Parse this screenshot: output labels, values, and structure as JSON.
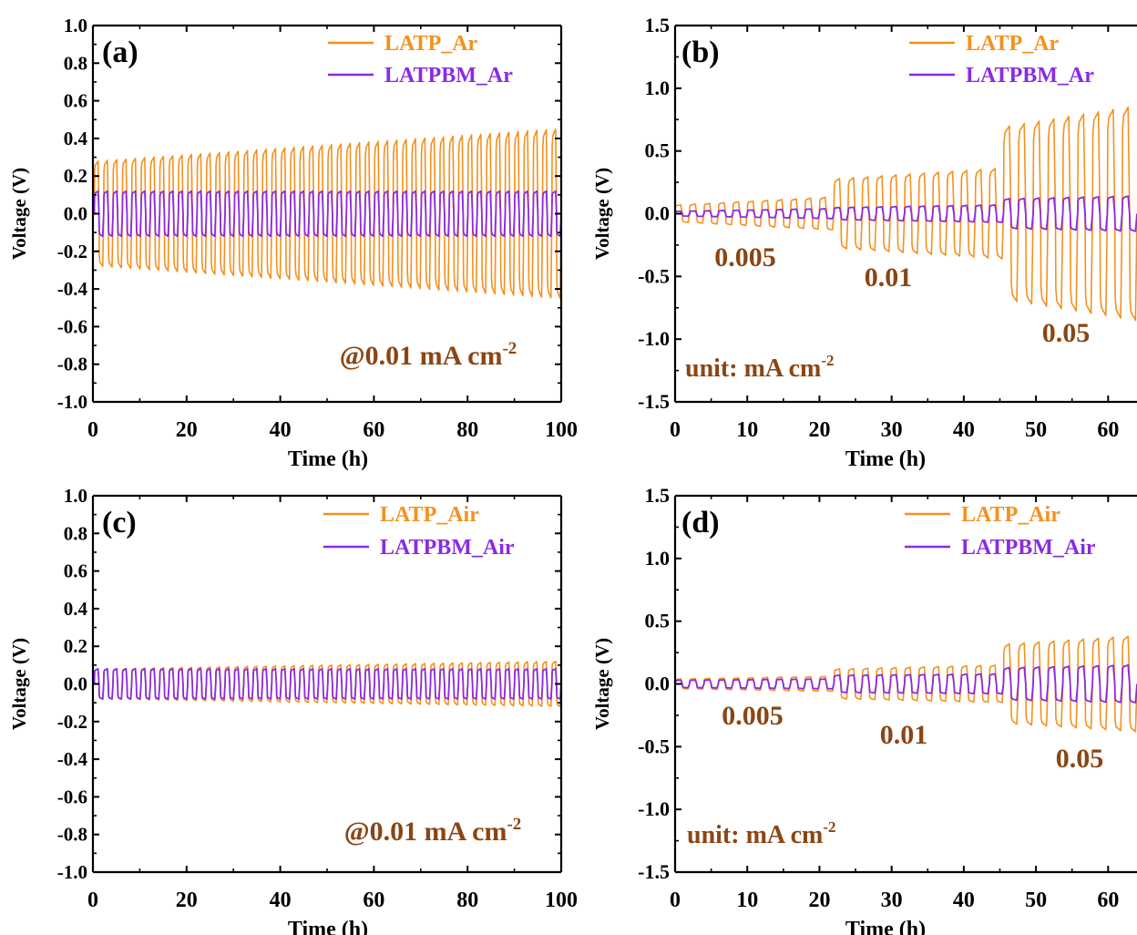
{
  "colors": {
    "orange": "#f5901e",
    "purple": "#8a2be2",
    "annotation": "#8b4513",
    "axis": "#000000"
  },
  "chart_data": [
    {
      "type": "line",
      "panel_label": "(a)",
      "xlabel": "Time (h)",
      "ylabel": "Voltage (V)",
      "xlim": [
        0,
        100
      ],
      "ylim": [
        -1.0,
        1.0
      ],
      "xticks": [
        "0",
        "20",
        "40",
        "60",
        "80",
        "100"
      ],
      "yticks": [
        "1.0",
        "0.8",
        "0.6",
        "0.4",
        "0.2",
        "0.0",
        "-0.2",
        "-0.4",
        "-0.6",
        "-0.8",
        "-1.0"
      ],
      "legend_position": "top-right",
      "series": [
        {
          "name": "LATP_Ar",
          "color": "#f5901e",
          "cycles": 50,
          "amplitude_start": 0.28,
          "amplitude_end": 0.45
        },
        {
          "name": "LATPBM_Ar",
          "color": "#8a2be2",
          "cycles": 50,
          "amplitude_start": 0.12,
          "amplitude_end": 0.12
        }
      ],
      "annotations": [
        {
          "text": "@0.01 mA cm",
          "sup": "-2"
        }
      ]
    },
    {
      "type": "line",
      "panel_label": "(b)",
      "xlabel": "Time (h)",
      "ylabel": "Voltage (V)",
      "xlim": [
        0,
        64
      ],
      "ylim": [
        -1.5,
        1.5
      ],
      "xticks": [
        "0",
        "10",
        "20",
        "30",
        "40",
        "50",
        "60"
      ],
      "yticks": [
        "1.5",
        "1.0",
        "0.5",
        "0.0",
        "-0.5",
        "-1.0",
        "-1.5"
      ],
      "legend_position": "top-right",
      "series": [
        {
          "name": "LATP_Ar",
          "color": "#f5901e",
          "segments": [
            {
              "x_start": 0,
              "x_end": 22,
              "cycles": 11,
              "amp_start": 0.07,
              "amp_end": 0.13
            },
            {
              "x_start": 22,
              "x_end": 45.5,
              "cycles": 12,
              "amp_start": 0.28,
              "amp_end": 0.36
            },
            {
              "x_start": 45.5,
              "x_end": 64,
              "cycles": 9,
              "amp_start": 0.7,
              "amp_end": 0.85
            }
          ]
        },
        {
          "name": "LATPBM_Ar",
          "color": "#8a2be2",
          "segments": [
            {
              "x_start": 0,
              "x_end": 22,
              "cycles": 11,
              "amp_start": 0.02,
              "amp_end": 0.04
            },
            {
              "x_start": 22,
              "x_end": 45.5,
              "cycles": 12,
              "amp_start": 0.05,
              "amp_end": 0.07
            },
            {
              "x_start": 45.5,
              "x_end": 64,
              "cycles": 9,
              "amp_start": 0.12,
              "amp_end": 0.14
            }
          ]
        }
      ],
      "annotations": [
        {
          "text": "0.005"
        },
        {
          "text": "0.01"
        },
        {
          "text": "0.05"
        },
        {
          "text": "unit: mA cm",
          "sup": "-2"
        }
      ]
    },
    {
      "type": "line",
      "panel_label": "(c)",
      "xlabel": "Time (h)",
      "ylabel": "Voltage (V)",
      "xlim": [
        0,
        100
      ],
      "ylim": [
        -1.0,
        1.0
      ],
      "xticks": [
        "0",
        "20",
        "40",
        "60",
        "80",
        "100"
      ],
      "yticks": [
        "1.0",
        "0.8",
        "0.6",
        "0.4",
        "0.2",
        "0.0",
        "-0.2",
        "-0.4",
        "-0.6",
        "-0.8",
        "-1.0"
      ],
      "legend_position": "top-right",
      "series": [
        {
          "name": "LATP_Air",
          "color": "#f5901e",
          "cycles": 50,
          "amplitude_start": 0.08,
          "amplitude_end": 0.12
        },
        {
          "name": "LATPBM_Air",
          "color": "#8a2be2",
          "cycles": 50,
          "amplitude_start": 0.08,
          "amplitude_end": 0.08
        }
      ],
      "annotations": [
        {
          "text": "@0.01 mA cm",
          "sup": "-2"
        }
      ]
    },
    {
      "type": "line",
      "panel_label": "(d)",
      "xlabel": "Time (h)",
      "ylabel": "Voltage (V)",
      "xlim": [
        0,
        64
      ],
      "ylim": [
        -1.5,
        1.5
      ],
      "xticks": [
        "0",
        "10",
        "20",
        "30",
        "40",
        "50",
        "60"
      ],
      "yticks": [
        "1.5",
        "1.0",
        "0.5",
        "0.0",
        "-0.5",
        "-1.0",
        "-1.5"
      ],
      "legend_position": "top-right",
      "series": [
        {
          "name": "LATP_Air",
          "color": "#f5901e",
          "segments": [
            {
              "x_start": 0,
              "x_end": 22,
              "cycles": 11,
              "amp_start": 0.04,
              "amp_end": 0.06
            },
            {
              "x_start": 22,
              "x_end": 45.5,
              "cycles": 12,
              "amp_start": 0.12,
              "amp_end": 0.15
            },
            {
              "x_start": 45.5,
              "x_end": 64,
              "cycles": 9,
              "amp_start": 0.32,
              "amp_end": 0.38
            }
          ]
        },
        {
          "name": "LATPBM_Air",
          "color": "#8a2be2",
          "segments": [
            {
              "x_start": 0,
              "x_end": 22,
              "cycles": 11,
              "amp_start": 0.03,
              "amp_end": 0.04
            },
            {
              "x_start": 22,
              "x_end": 45.5,
              "cycles": 12,
              "amp_start": 0.07,
              "amp_end": 0.08
            },
            {
              "x_start": 45.5,
              "x_end": 64,
              "cycles": 9,
              "amp_start": 0.13,
              "amp_end": 0.15
            }
          ]
        }
      ],
      "annotations": [
        {
          "text": "0.005"
        },
        {
          "text": "0.01"
        },
        {
          "text": "0.05"
        },
        {
          "text": "unit: mA cm",
          "sup": "-2"
        }
      ]
    }
  ]
}
